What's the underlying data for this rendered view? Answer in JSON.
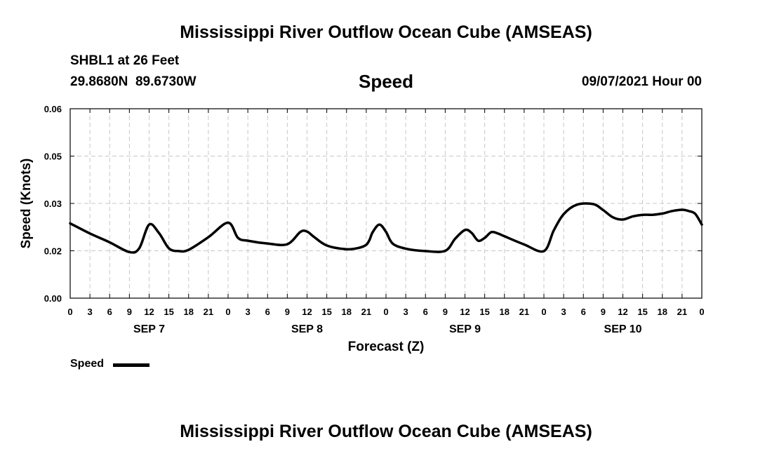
{
  "header": {
    "title": "Mississippi River Outflow Ocean Cube (AMSEAS)",
    "station": "SHBL1 at 26 Feet",
    "coordinates": "29.8680N  89.6730W",
    "variable": "Speed",
    "datetime": "09/07/2021 Hour 00"
  },
  "footer": {
    "title": "Mississippi River Outflow Ocean Cube (AMSEAS)"
  },
  "legend": {
    "label": "Speed",
    "color": "#000000"
  },
  "chart_data": {
    "type": "line",
    "xlabel": "Forecast (Z)",
    "ylabel": "Speed (Knots)",
    "x_unit": "hours since 09/07/2021 00Z",
    "xlim": [
      0,
      96
    ],
    "ylim": [
      0.0,
      0.06
    ],
    "y_ticks": [
      "0.00",
      "0.02",
      "0.03",
      "0.05",
      "0.06"
    ],
    "y_tick_values": [
      0.0,
      0.015,
      0.03,
      0.045,
      0.06
    ],
    "x_tick_labels": [
      "0",
      "3",
      "6",
      "9",
      "12",
      "15",
      "18",
      "21",
      "0",
      "3",
      "6",
      "9",
      "12",
      "15",
      "18",
      "21",
      "0",
      "3",
      "6",
      "9",
      "12",
      "15",
      "18",
      "21",
      "0",
      "3",
      "6",
      "9",
      "12",
      "15",
      "18",
      "21",
      "0"
    ],
    "day_labels": [
      {
        "label": "SEP 7",
        "hour": 12
      },
      {
        "label": "SEP 8",
        "hour": 36
      },
      {
        "label": "SEP 9",
        "hour": 60
      },
      {
        "label": "SEP 10",
        "hour": 84
      }
    ],
    "grid": true,
    "series": [
      {
        "name": "Speed",
        "color": "#000000",
        "x": [
          0,
          3,
          6,
          9,
          10.5,
          12,
          13.5,
          15,
          16.5,
          18,
          21,
          24,
          25.5,
          27,
          30,
          33,
          35,
          36,
          37,
          39,
          42,
          44,
          45,
          45.5,
          46,
          47,
          48,
          49,
          51,
          54,
          57,
          58.5,
          60,
          61,
          62,
          63,
          64,
          65,
          66,
          69,
          72,
          73.5,
          75,
          77,
          79.5,
          81,
          82.5,
          84,
          85.5,
          87,
          88.5,
          90,
          91.5,
          93,
          94,
          95,
          96
        ],
        "y": [
          0.0237,
          0.0205,
          0.0177,
          0.0146,
          0.0158,
          0.0233,
          0.0206,
          0.0158,
          0.0149,
          0.0153,
          0.0193,
          0.0239,
          0.0191,
          0.0182,
          0.0173,
          0.0171,
          0.021,
          0.0211,
          0.0195,
          0.0167,
          0.0155,
          0.016,
          0.0169,
          0.0185,
          0.021,
          0.0233,
          0.021,
          0.0173,
          0.0157,
          0.0149,
          0.015,
          0.0188,
          0.0216,
          0.0207,
          0.0182,
          0.0191,
          0.0209,
          0.0205,
          0.0196,
          0.017,
          0.0149,
          0.0215,
          0.0266,
          0.0296,
          0.0298,
          0.0279,
          0.0256,
          0.0249,
          0.0259,
          0.0264,
          0.0264,
          0.0268,
          0.0276,
          0.028,
          0.0276,
          0.0267,
          0.0233
        ]
      }
    ]
  }
}
